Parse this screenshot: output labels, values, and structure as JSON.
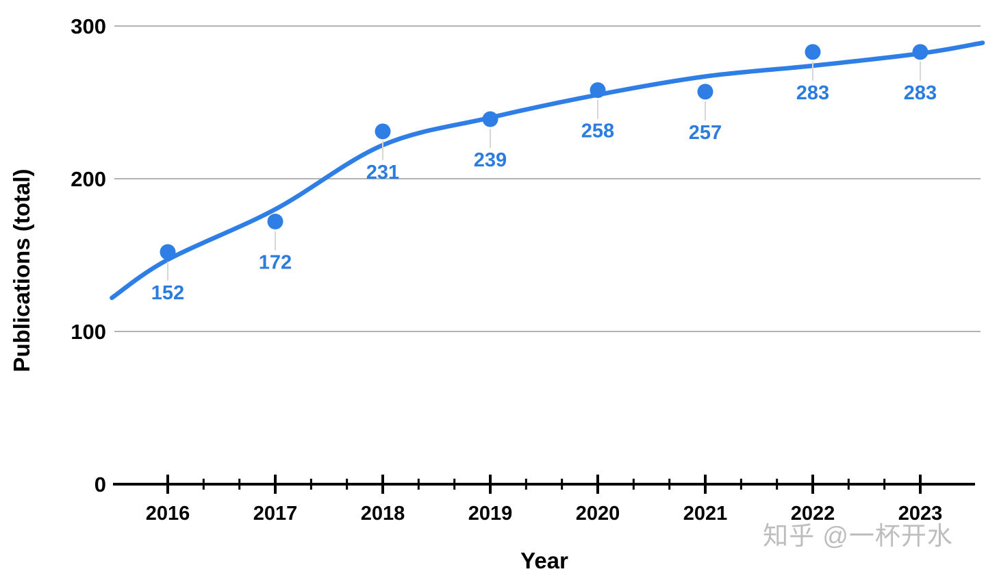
{
  "watermark": "知乎 @一杯开水",
  "chart_data": {
    "type": "scatter",
    "title": "",
    "xlabel": "Year",
    "ylabel": "Publications (total)",
    "categories": [
      2016,
      2017,
      2018,
      2019,
      2020,
      2021,
      2022,
      2023
    ],
    "values": [
      152,
      172,
      231,
      239,
      258,
      257,
      283,
      283
    ],
    "data_labels": [
      "152",
      "172",
      "231",
      "239",
      "258",
      "257",
      "283",
      "283"
    ],
    "ylim": [
      0,
      300
    ],
    "yticks": [
      300,
      200,
      100,
      0
    ],
    "xlim": [
      2015.5,
      2023.57
    ],
    "x_minor_ticks_per_interval": 2,
    "grid": "horizontal",
    "legend": "none",
    "trendline": {
      "type": "logarithmic",
      "points": [
        [
          2015.48,
          122
        ],
        [
          2016,
          147
        ],
        [
          2017,
          180
        ],
        [
          2018,
          222
        ],
        [
          2019,
          240
        ],
        [
          2020,
          255
        ],
        [
          2021,
          267
        ],
        [
          2022,
          274
        ],
        [
          2023,
          282
        ],
        [
          2023.58,
          289
        ]
      ]
    },
    "colors": {
      "point": "#2e7ee5",
      "trend": "#2e7ee5",
      "data_label": "#2b7cdf",
      "grid": "#b2b2b2",
      "axis": "#000000",
      "leader": "#d6d6d6",
      "watermark": "#bdbdbd",
      "tick_text": "#000000"
    }
  }
}
